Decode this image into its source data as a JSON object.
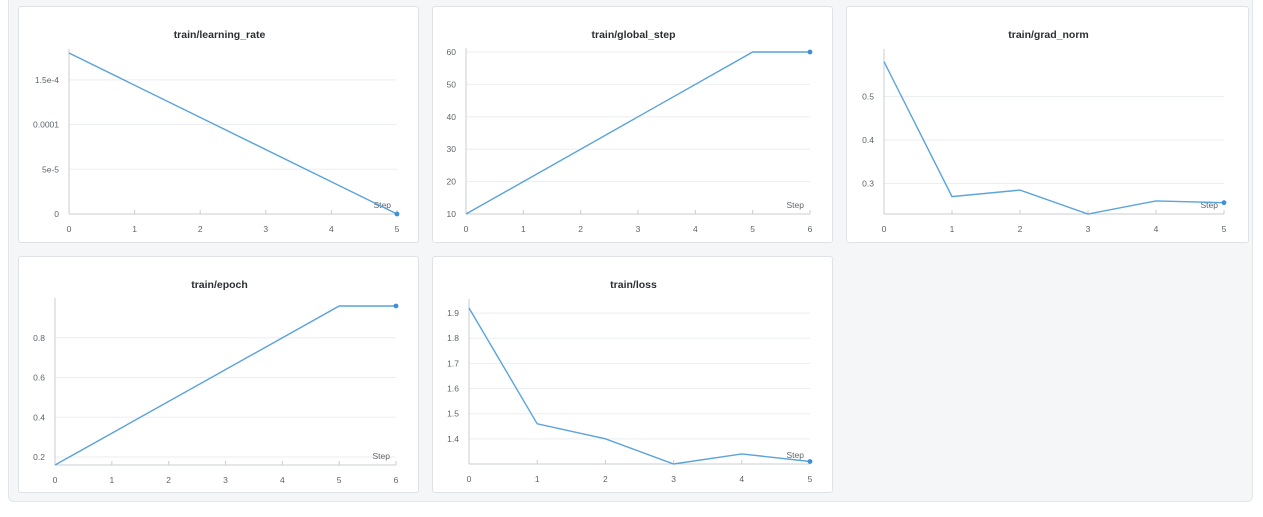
{
  "chart_data": [
    {
      "id": "lr",
      "type": "line",
      "title": "train/learning_rate",
      "xlabel": "Step",
      "x": [
        0,
        5
      ],
      "y": [
        0.00018,
        0
      ],
      "xlim": [
        0,
        5
      ],
      "ylim": [
        0,
        0.00018
      ],
      "xticks": [
        0,
        1,
        2,
        3,
        4,
        5
      ],
      "yticks": [
        {
          "v": 0,
          "label": "0"
        },
        {
          "v": 5e-05,
          "label": "5e-5"
        },
        {
          "v": 0.0001,
          "label": "0.0001"
        },
        {
          "v": 0.00015,
          "label": "1.5e-4"
        }
      ],
      "grid": true,
      "last_point_marker": true
    },
    {
      "id": "gs",
      "type": "line",
      "title": "train/global_step",
      "xlabel": "Step",
      "x": [
        0,
        5,
        6
      ],
      "y": [
        10,
        60,
        60
      ],
      "xlim": [
        0,
        6
      ],
      "ylim": [
        10,
        60
      ],
      "xticks": [
        0,
        1,
        2,
        3,
        4,
        5,
        6
      ],
      "yticks": [
        {
          "v": 10,
          "label": "10"
        },
        {
          "v": 20,
          "label": "20"
        },
        {
          "v": 30,
          "label": "30"
        },
        {
          "v": 40,
          "label": "40"
        },
        {
          "v": 50,
          "label": "50"
        },
        {
          "v": 60,
          "label": "60"
        }
      ],
      "grid": true,
      "last_point_marker": true
    },
    {
      "id": "gn",
      "type": "line",
      "title": "train/grad_norm",
      "xlabel": "Step",
      "x": [
        0,
        1,
        2,
        3,
        4,
        5
      ],
      "y": [
        0.58,
        0.27,
        0.285,
        0.23,
        0.26,
        0.256
      ],
      "xlim": [
        0,
        5
      ],
      "ylim": [
        0.23,
        0.6
      ],
      "xticks": [
        0,
        1,
        2,
        3,
        4,
        5
      ],
      "yticks": [
        {
          "v": 0.3,
          "label": "0.3"
        },
        {
          "v": 0.4,
          "label": "0.4"
        },
        {
          "v": 0.5,
          "label": "0.5"
        }
      ],
      "grid": true,
      "last_point_marker": true
    },
    {
      "id": "ep",
      "type": "line",
      "title": "train/epoch",
      "xlabel": "Step",
      "x": [
        0,
        5,
        6
      ],
      "y": [
        0.16,
        0.96,
        0.96
      ],
      "xlim": [
        0,
        6
      ],
      "ylim": [
        0.16,
        0.98
      ],
      "xticks": [
        0,
        1,
        2,
        3,
        4,
        5,
        6
      ],
      "yticks": [
        {
          "v": 0.2,
          "label": "0.2"
        },
        {
          "v": 0.4,
          "label": "0.4"
        },
        {
          "v": 0.6,
          "label": "0.6"
        },
        {
          "v": 0.8,
          "label": "0.8"
        }
      ],
      "grid": true,
      "last_point_marker": true
    },
    {
      "id": "loss",
      "type": "line",
      "title": "train/loss",
      "xlabel": "Step",
      "x": [
        0,
        1,
        2,
        3,
        4,
        5
      ],
      "y": [
        1.92,
        1.46,
        1.4,
        1.3,
        1.34,
        1.31
      ],
      "xlim": [
        0,
        5
      ],
      "ylim": [
        1.3,
        1.94
      ],
      "xticks": [
        0,
        1,
        2,
        3,
        4,
        5
      ],
      "yticks": [
        {
          "v": 1.4,
          "label": "1.4"
        },
        {
          "v": 1.5,
          "label": "1.5"
        },
        {
          "v": 1.6,
          "label": "1.6"
        },
        {
          "v": 1.7,
          "label": "1.7"
        },
        {
          "v": 1.8,
          "label": "1.8"
        },
        {
          "v": 1.9,
          "label": "1.9"
        }
      ],
      "grid": true,
      "last_point_marker": true
    }
  ],
  "colors": {
    "line": "#5aa3dc",
    "marker": "#3d8fd6",
    "grid": "#eceef1"
  }
}
